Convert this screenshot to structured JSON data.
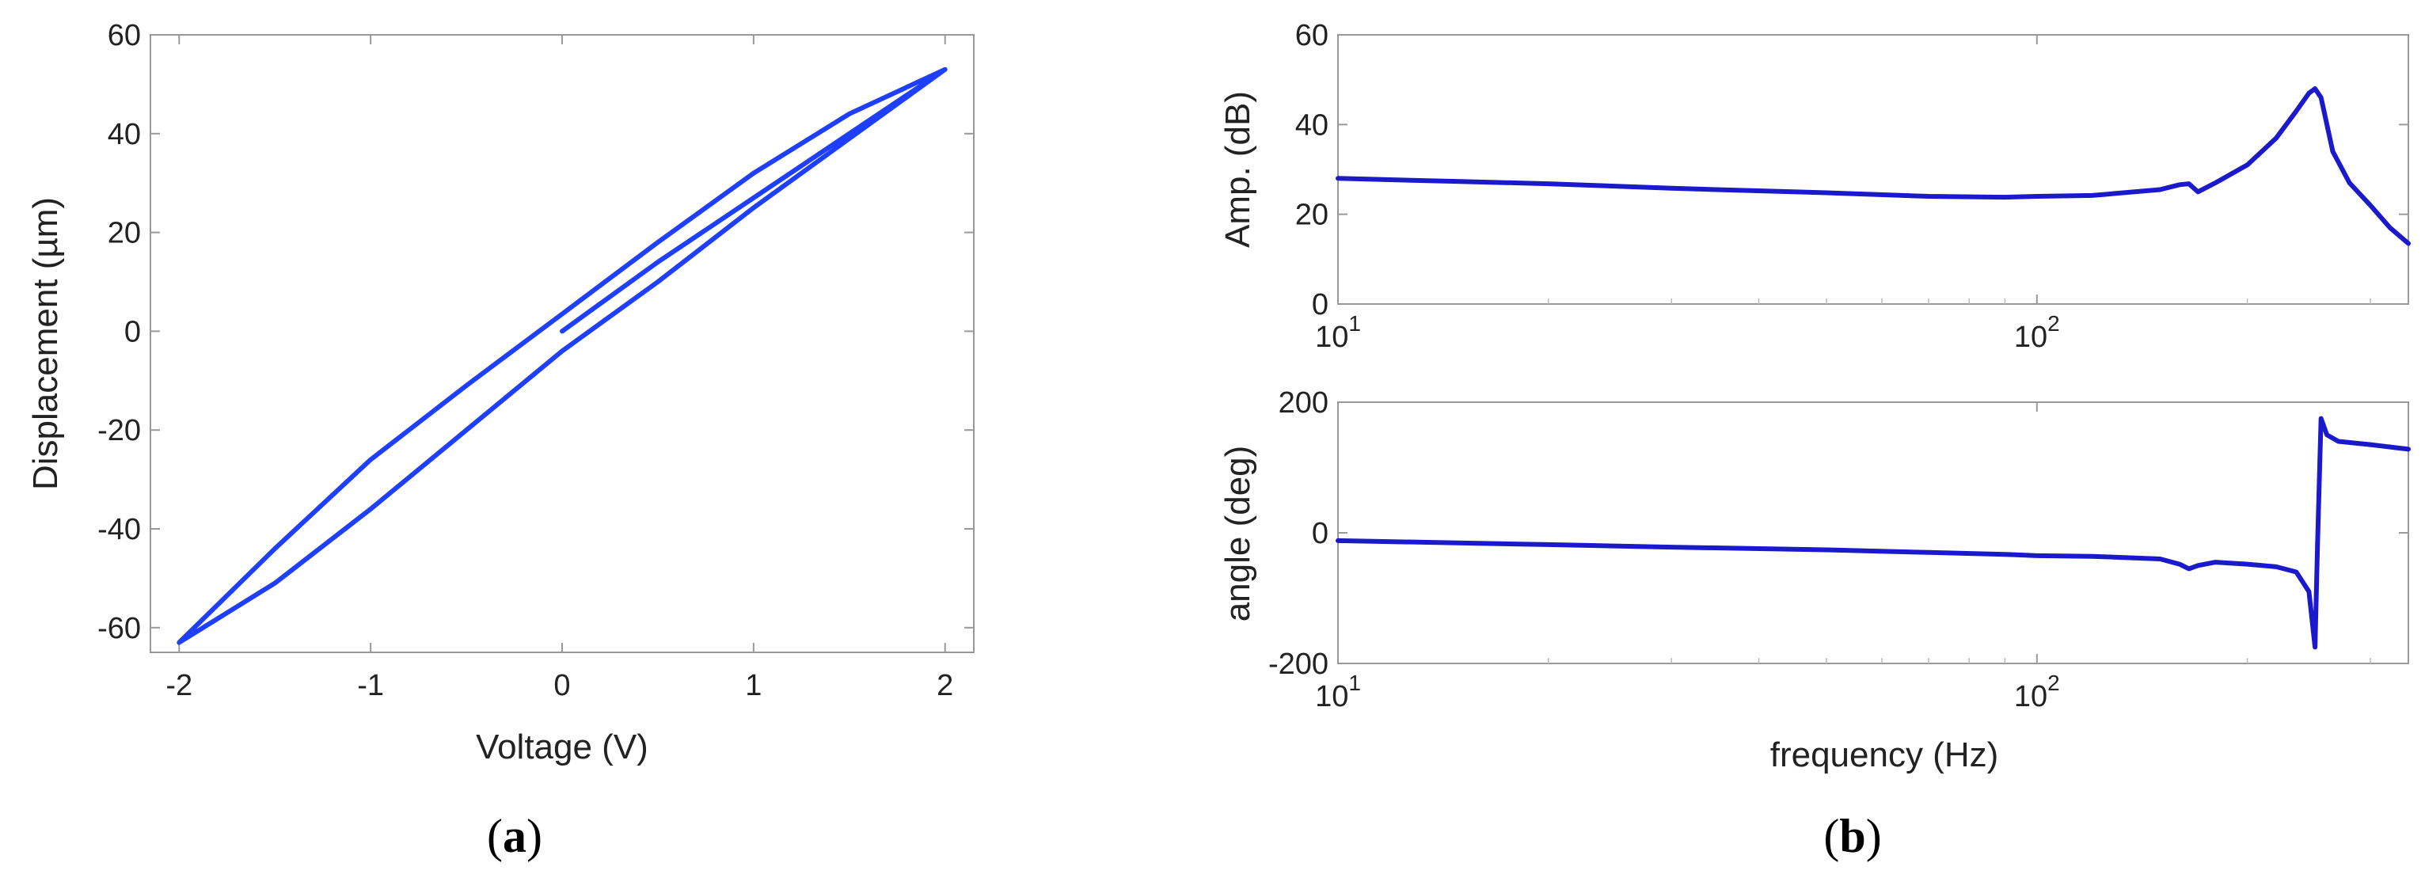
{
  "panels": {
    "a": {
      "open": "(",
      "letter": "a",
      "close": ")"
    },
    "b": {
      "open": "(",
      "letter": "b",
      "close": ")"
    }
  },
  "chart_data": [
    {
      "id": "a",
      "type": "line",
      "title": "",
      "xlabel": "Voltage (V)",
      "ylabel": "Displacement (µm)",
      "xlim": [
        -2.15,
        2.15
      ],
      "ylim": [
        -65,
        60
      ],
      "xticks": [
        -2,
        -1,
        0,
        1,
        2
      ],
      "xtick_labels": [
        "-2",
        "-1",
        "0",
        "1",
        "2"
      ],
      "yticks": [
        -60,
        -40,
        -20,
        0,
        20,
        40,
        60
      ],
      "ytick_labels": [
        "-60",
        "-40",
        "-20",
        "0",
        "20",
        "40",
        "60"
      ],
      "grid": false,
      "color": "#1f3fff",
      "series": [
        {
          "x": [
            0,
            0.5,
            1,
            1.5,
            2,
            1.5,
            1,
            0.5,
            0,
            -0.5,
            -1,
            -1.5,
            -2,
            -1.5,
            -1,
            -0.5,
            0,
            0.5,
            1,
            1.5,
            2
          ],
          "y": [
            0,
            14,
            27,
            40,
            53,
            44,
            32,
            18,
            3.5,
            -11,
            -26,
            -44,
            -63,
            -51,
            -36,
            -20,
            -4,
            10,
            25,
            39,
            53
          ]
        }
      ]
    },
    {
      "id": "b-amp",
      "type": "line",
      "title": "",
      "xlabel": "",
      "ylabel": "Amp. (dB)",
      "xscale": "log",
      "xlim": [
        10,
        340
      ],
      "ylim": [
        0,
        60
      ],
      "xticks": [
        10,
        100
      ],
      "xtick_labels": [
        {
          "base": "10",
          "exp": "1"
        },
        {
          "base": "10",
          "exp": "2"
        }
      ],
      "yticks": [
        0,
        20,
        40,
        60
      ],
      "ytick_labels": [
        "0",
        "20",
        "40",
        "60"
      ],
      "grid": false,
      "color": "#1a1acc",
      "series": [
        {
          "x": [
            10,
            15,
            20,
            30,
            50,
            70,
            90,
            100,
            120,
            150,
            160,
            165,
            170,
            180,
            200,
            220,
            235,
            245,
            250,
            255,
            265,
            280,
            300,
            320,
            340
          ],
          "y": [
            28,
            27.3,
            26.8,
            25.8,
            24.8,
            24,
            23.8,
            24,
            24.2,
            25.5,
            26.6,
            26.8,
            25,
            27,
            31,
            37,
            43,
            47,
            48,
            46,
            34,
            27,
            22,
            17,
            13.5
          ]
        }
      ]
    },
    {
      "id": "b-phase",
      "type": "line",
      "title": "",
      "xlabel": "frequency (Hz)",
      "ylabel": "angle (deg)",
      "xscale": "log",
      "xlim": [
        10,
        340
      ],
      "ylim": [
        -200,
        200
      ],
      "xticks": [
        10,
        100
      ],
      "xtick_labels": [
        {
          "base": "10",
          "exp": "1"
        },
        {
          "base": "10",
          "exp": "2"
        }
      ],
      "yticks": [
        -200,
        0,
        200
      ],
      "ytick_labels": [
        "-200",
        "0",
        "200"
      ],
      "grid": false,
      "color": "#1a1acc",
      "series": [
        {
          "x": [
            10,
            20,
            30,
            50,
            70,
            90,
            100,
            120,
            150,
            160,
            165,
            170,
            180,
            200,
            220,
            235,
            245,
            250,
            252,
            255,
            260,
            270,
            300,
            340
          ],
          "y": [
            -12,
            -18,
            -22,
            -26,
            -30,
            -33,
            -35,
            -36,
            -40,
            -48,
            -55,
            -50,
            -45,
            -48,
            -52,
            -60,
            -90,
            -175,
            -20,
            175,
            150,
            140,
            135,
            128
          ]
        }
      ]
    }
  ]
}
